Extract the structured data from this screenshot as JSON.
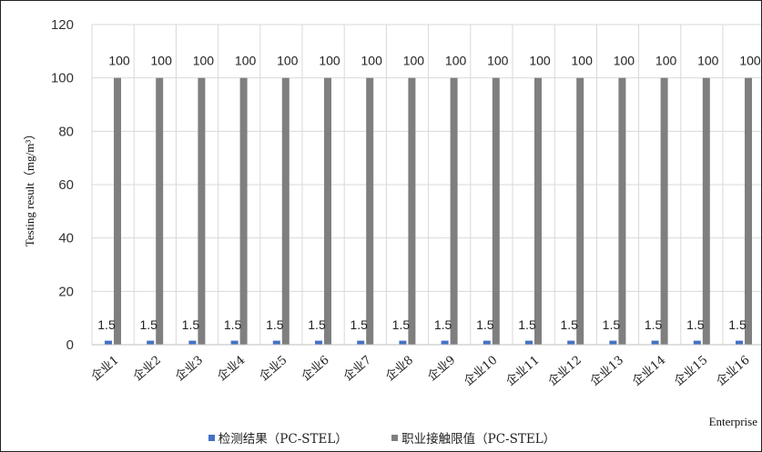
{
  "chart_data": {
    "type": "bar",
    "categories": [
      "企业1",
      "企业2",
      "企业3",
      "企业4",
      "企业5",
      "企业6",
      "企业7",
      "企业8",
      "企业9",
      "企业10",
      "企业11",
      "企业12",
      "企业13",
      "企业14",
      "企业15",
      "企业16"
    ],
    "series": [
      {
        "name": "检测结果（PC-STEL）",
        "color": "#4472C4",
        "values": [
          1.5,
          1.5,
          1.5,
          1.5,
          1.5,
          1.5,
          1.5,
          1.5,
          1.5,
          1.5,
          1.5,
          1.5,
          1.5,
          1.5,
          1.5,
          1.5
        ]
      },
      {
        "name": "职业接触限值（PC-STEL）",
        "color": "#7F7F7F",
        "values": [
          100,
          100,
          100,
          100,
          100,
          100,
          100,
          100,
          100,
          100,
          100,
          100,
          100,
          100,
          100,
          100
        ]
      }
    ],
    "xlabel": "Enterprise",
    "ylabel": "Testing result（mg/m³）",
    "ylim": [
      0,
      120
    ],
    "yticks": [
      0,
      20,
      40,
      60,
      80,
      100,
      120
    ],
    "grid": true,
    "legend_position": "bottom"
  }
}
